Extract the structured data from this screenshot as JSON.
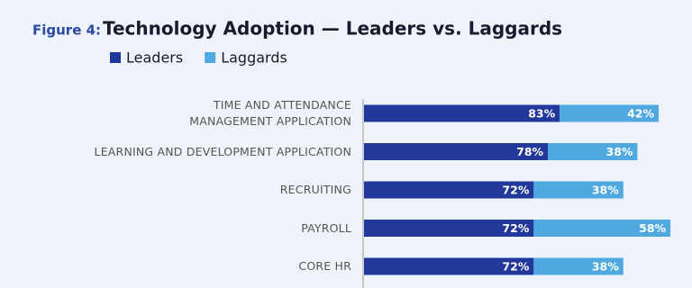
{
  "chart_data": {
    "type": "stacked-bar-horizontal",
    "figure_label": "Figure 4:",
    "title": "Technology Adoption — Leaders vs. Laggards",
    "categories": [
      "TIME AND ATTENDANCE\nMANAGEMENT APPLICATION",
      "LEARNING AND DEVELOPMENT APPLICATION",
      "RECRUITING",
      "PAYROLL",
      "CORE HR"
    ],
    "series": [
      {
        "name": "Leaders",
        "color": "#22389a",
        "values": [
          83,
          78,
          72,
          72,
          72
        ],
        "value_labels": [
          "83%",
          "78%",
          "72%",
          "72%",
          "72%"
        ]
      },
      {
        "name": "Laggards",
        "color": "#4fa9df",
        "values": [
          42,
          38,
          38,
          58,
          38
        ],
        "value_labels": [
          "42%",
          "38%",
          "38%",
          "58%",
          "38%"
        ]
      }
    ]
  }
}
